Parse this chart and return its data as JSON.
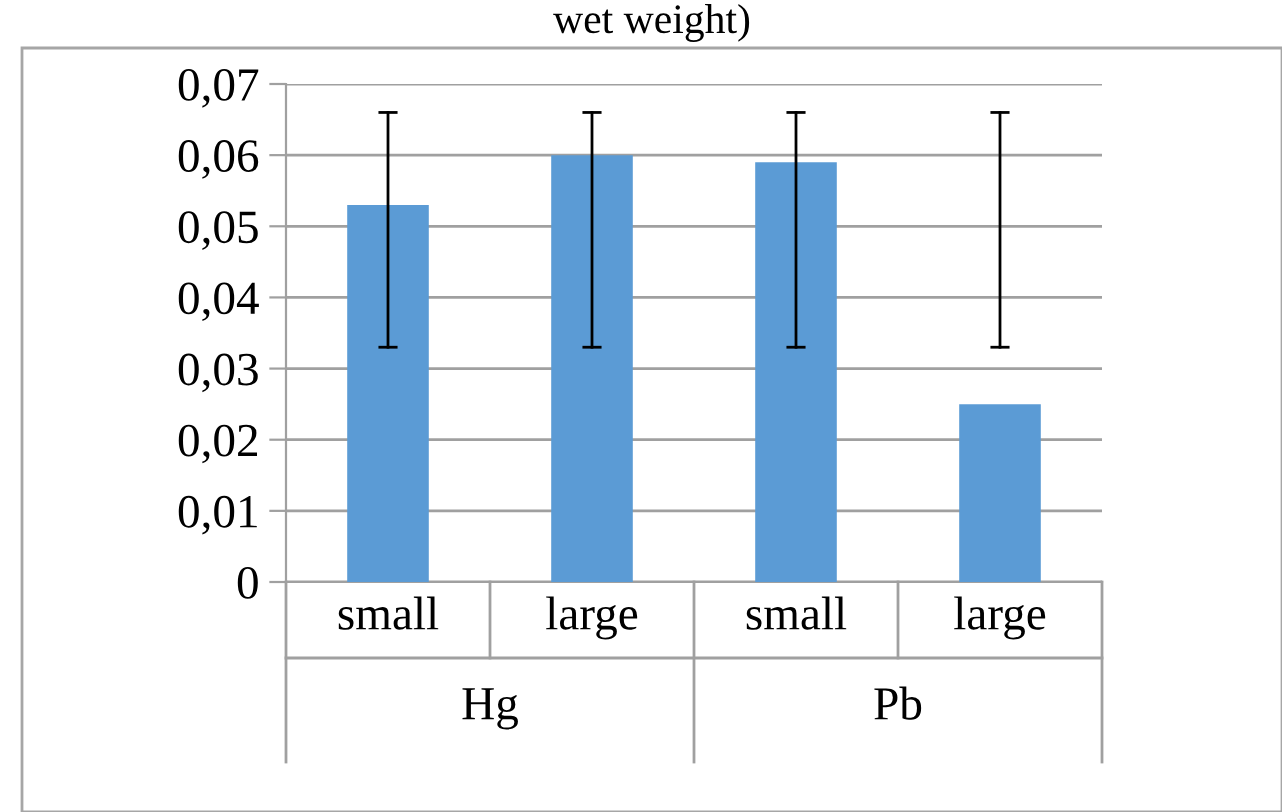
{
  "chart_data": {
    "type": "bar",
    "title": "wet weight)",
    "categories": [
      "small",
      "large",
      "small",
      "large"
    ],
    "values": [
      0.053,
      0.06,
      0.059,
      0.025
    ],
    "color": "#5b9bd5",
    "errors": [
      [
        0.033,
        0.066
      ],
      [
        0.033,
        0.066
      ],
      [
        0.033,
        0.066
      ],
      [
        0.033,
        0.066
      ]
    ],
    "ylim": [
      0,
      0.07
    ],
    "yticks": [
      {
        "value": 0,
        "label": "0"
      },
      {
        "value": 0.01,
        "label": "0,01"
      },
      {
        "value": 0.02,
        "label": "0,02"
      },
      {
        "value": 0.03,
        "label": "0,03"
      },
      {
        "value": 0.04,
        "label": "0,04"
      },
      {
        "value": 0.05,
        "label": "0,05"
      },
      {
        "value": 0.06,
        "label": "0,06"
      },
      {
        "value": 0.07,
        "label": "0,07"
      }
    ],
    "grid": "y",
    "legend": false,
    "annotations": [
      "Hg",
      "Pb"
    ]
  }
}
